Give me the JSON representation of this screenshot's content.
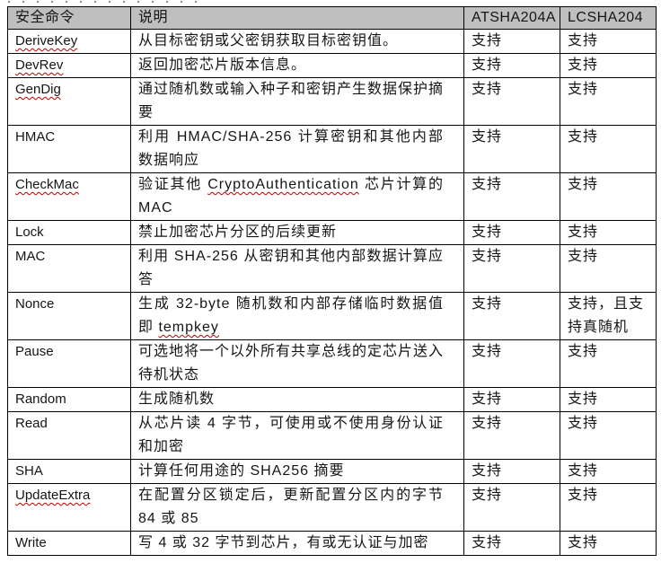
{
  "page": {
    "background": "#ffffff",
    "border_color": "#000000",
    "text_color": "#151515"
  },
  "table": {
    "header_bg": "#bfbfbf",
    "misspell_color": "#c00000",
    "columns": [
      {
        "label": "安全命令"
      },
      {
        "label": "说明"
      },
      {
        "label": "ATSHA204A"
      },
      {
        "label": "LCSHA204"
      }
    ],
    "rows": [
      {
        "command": "DeriveKey",
        "command_misspelled": true,
        "description": [
          {
            "text": "从目标密钥或父密钥获取目标密钥值。"
          }
        ],
        "atsha204a": "支持",
        "lcsha204": "支持"
      },
      {
        "command": "DevRev",
        "command_misspelled": true,
        "description": [
          {
            "text": "返回加密芯片版本信息。"
          }
        ],
        "atsha204a": "支持",
        "lcsha204": "支持"
      },
      {
        "command": "GenDig",
        "command_misspelled": true,
        "description": [
          {
            "text": "通过随机数或输入种子和密钥产生数据保护摘要"
          }
        ],
        "atsha204a": "支持",
        "lcsha204": "支持"
      },
      {
        "command": "HMAC",
        "command_misspelled": false,
        "description": [
          {
            "text": "利用 HMAC/SHA-256 计算密钥和其他内部数据响应"
          }
        ],
        "atsha204a": "支持",
        "lcsha204": "支持"
      },
      {
        "command": "CheckMac",
        "command_misspelled": true,
        "description": [
          {
            "text": "验证其他 "
          },
          {
            "text": "CryptoAuthentication",
            "misspelled": true
          },
          {
            "text": " 芯片计算的 MAC"
          }
        ],
        "atsha204a": "支持",
        "lcsha204": "支持"
      },
      {
        "command": "Lock",
        "command_misspelled": false,
        "description": [
          {
            "text": "禁止加密芯片分区的后续更新"
          }
        ],
        "atsha204a": "支持",
        "lcsha204": "支持"
      },
      {
        "command": "MAC",
        "command_misspelled": false,
        "description": [
          {
            "text": "利用 SHA-256 从密钥和其他内部数据计算应答"
          }
        ],
        "atsha204a": "支持",
        "lcsha204": "支持"
      },
      {
        "command": "Nonce",
        "command_misspelled": false,
        "description": [
          {
            "text": "生成 32-byte 随机数和内部存储临时数据值即 "
          },
          {
            "text": "tempkey",
            "misspelled": true
          }
        ],
        "atsha204a": "支持",
        "lcsha204": "支持，且支持真随机"
      },
      {
        "command": "Pause",
        "command_misspelled": false,
        "description": [
          {
            "text": "可选地将一个以外所有共享总线的定芯片送入待机状态"
          }
        ],
        "atsha204a": "支持",
        "lcsha204": "支持"
      },
      {
        "command": "Random",
        "command_misspelled": false,
        "description": [
          {
            "text": "生成随机数"
          }
        ],
        "atsha204a": "支持",
        "lcsha204": "支持"
      },
      {
        "command": "Read",
        "command_misspelled": false,
        "description": [
          {
            "text": "从芯片读 4 字节，可使用或不使用身份认证和加密"
          }
        ],
        "atsha204a": "支持",
        "lcsha204": "支持"
      },
      {
        "command": "SHA",
        "command_misspelled": false,
        "description": [
          {
            "text": "计算任何用途的 SHA256 摘要"
          }
        ],
        "atsha204a": "支持",
        "lcsha204": "支持"
      },
      {
        "command": "UpdateExtra",
        "command_misspelled": true,
        "description": [
          {
            "text": "在配置分区锁定后，更新配置分区内的字节 84 或 85"
          }
        ],
        "atsha204a": "支持",
        "lcsha204": "支持"
      },
      {
        "command": "Write",
        "command_misspelled": false,
        "description": [
          {
            "text": "写 4 或 32 字节到芯片，有或无认证与加密"
          }
        ],
        "atsha204a": "支持",
        "lcsha204": "支持"
      }
    ]
  }
}
